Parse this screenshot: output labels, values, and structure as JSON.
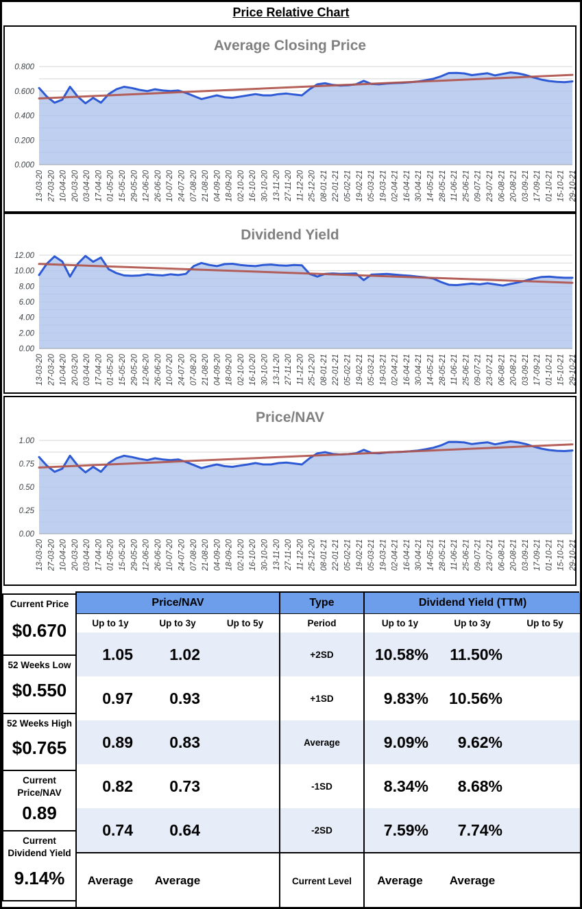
{
  "title": "Price Relative Chart",
  "colors": {
    "series_line": "#2d5ad4",
    "area_fill": "#aec3ec",
    "trend_line": "#b0544c",
    "gridline": "#d2d4d8",
    "chart_title": "#808080",
    "table_header_bg": "#6d9eeb",
    "table_stripe_bg": "#e7edf8"
  },
  "x_labels": [
    "13-03-20",
    "27-03-20",
    "10-04-20",
    "20-03-20",
    "03-04-20",
    "17-04-20",
    "01-05-20",
    "15-05-20",
    "29-05-20",
    "12-06-20",
    "26-06-20",
    "10-07-20",
    "24-07-20",
    "07-08-20",
    "21-08-20",
    "04-09-20",
    "18-09-20",
    "02-10-20",
    "16-10-20",
    "30-10-20",
    "13-11-20",
    "27-11-20",
    "11-12-20",
    "25-12-20",
    "08-01-21",
    "22-01-21",
    "05-02-21",
    "19-02-21",
    "05-03-21",
    "19-03-21",
    "02-04-21",
    "16-04-21",
    "30-04-21",
    "14-05-21",
    "28-05-21",
    "11-06-21",
    "25-06-21",
    "09-07-21",
    "23-07-21",
    "06-08-21",
    "20-08-21",
    "03-09-21",
    "17-09-21",
    "01-10-21",
    "15-10-21",
    "29-10-21"
  ],
  "chart_data": [
    {
      "type": "area",
      "title": "Average Closing Price",
      "ylim": [
        0,
        0.8
      ],
      "tick_step": 0.2,
      "grid_step": 0.1,
      "tick_decimals": 3,
      "grid": true,
      "legend_position": "none",
      "trend": {
        "start": 0.54,
        "end": 0.732
      },
      "values": [
        0.625,
        0.555,
        0.505,
        0.53,
        0.635,
        0.555,
        0.5,
        0.545,
        0.505,
        0.575,
        0.615,
        0.635,
        0.625,
        0.61,
        0.6,
        0.615,
        0.605,
        0.6,
        0.605,
        0.585,
        0.56,
        0.535,
        0.55,
        0.565,
        0.55,
        0.545,
        0.555,
        0.565,
        0.575,
        0.565,
        0.565,
        0.575,
        0.58,
        0.572,
        0.565,
        0.615,
        0.655,
        0.664,
        0.65,
        0.645,
        0.648,
        0.655,
        0.683,
        0.658,
        0.655,
        0.662,
        0.665,
        0.667,
        0.672,
        0.678,
        0.688,
        0.7,
        0.72,
        0.747,
        0.748,
        0.744,
        0.73,
        0.738,
        0.745,
        0.728,
        0.74,
        0.752,
        0.744,
        0.73,
        0.71,
        0.693,
        0.682,
        0.676,
        0.673,
        0.679
      ]
    },
    {
      "type": "area",
      "title": "Dividend Yield",
      "ylim": [
        0,
        12
      ],
      "tick_step": 2,
      "grid_step": 1,
      "tick_decimals": 2,
      "grid": true,
      "legend_position": "none",
      "trend": {
        "start": 10.87,
        "end": 8.45
      },
      "values": [
        9.45,
        10.9,
        11.85,
        11.2,
        9.25,
        10.9,
        11.9,
        11.15,
        11.7,
        10.2,
        9.7,
        9.4,
        9.35,
        9.4,
        9.55,
        9.45,
        9.4,
        9.55,
        9.45,
        9.6,
        10.6,
        11.0,
        10.75,
        10.6,
        10.85,
        10.9,
        10.75,
        10.65,
        10.6,
        10.75,
        10.8,
        10.7,
        10.65,
        10.75,
        10.7,
        9.6,
        9.25,
        9.6,
        9.65,
        9.6,
        9.62,
        9.65,
        8.8,
        9.5,
        9.55,
        9.6,
        9.5,
        9.42,
        9.35,
        9.25,
        9.15,
        9.0,
        8.55,
        8.2,
        8.15,
        8.25,
        8.35,
        8.25,
        8.4,
        8.25,
        8.1,
        8.3,
        8.5,
        8.75,
        9.0,
        9.2,
        9.25,
        9.15,
        9.1,
        9.1
      ]
    },
    {
      "type": "area",
      "title": "Price/NAV",
      "ylim": [
        0,
        1.0
      ],
      "tick_step": 0.25,
      "grid_step": 0.125,
      "tick_decimals": 2,
      "grid": true,
      "legend_position": "none",
      "trend": {
        "start": 0.71,
        "end": 0.958
      },
      "values": [
        0.822,
        0.73,
        0.664,
        0.697,
        0.836,
        0.73,
        0.658,
        0.717,
        0.664,
        0.757,
        0.809,
        0.836,
        0.822,
        0.803,
        0.789,
        0.809,
        0.796,
        0.789,
        0.796,
        0.77,
        0.737,
        0.704,
        0.724,
        0.743,
        0.724,
        0.717,
        0.73,
        0.743,
        0.757,
        0.743,
        0.743,
        0.757,
        0.763,
        0.753,
        0.743,
        0.809,
        0.862,
        0.874,
        0.855,
        0.849,
        0.853,
        0.862,
        0.899,
        0.866,
        0.862,
        0.871,
        0.875,
        0.878,
        0.884,
        0.892,
        0.905,
        0.921,
        0.947,
        0.983,
        0.984,
        0.979,
        0.961,
        0.971,
        0.98,
        0.958,
        0.974,
        0.989,
        0.979,
        0.961,
        0.934,
        0.912,
        0.897,
        0.889,
        0.886,
        0.893
      ]
    }
  ],
  "summary_boxes": [
    {
      "label": "Current Price",
      "value": "$0.670"
    },
    {
      "label": "52 Weeks Low",
      "value": "$0.550"
    },
    {
      "label": "52 Weeks High",
      "value": "$0.765"
    },
    {
      "label": "Current Price/NAV",
      "value": "0.89"
    },
    {
      "label": "Current Dividend Yield",
      "value": "9.14%"
    }
  ],
  "table": {
    "sections": {
      "pnav": "Price/NAV",
      "type": "Type",
      "dy": "Dividend Yield (TTM)"
    },
    "col_headers": [
      "Up to 1y",
      "Up to 3y",
      "Up to 5y"
    ],
    "type_subheader": "Period",
    "rows": [
      {
        "period": "+2SD",
        "pnav": [
          "1.05",
          "1.02",
          ""
        ],
        "dy": [
          "10.58%",
          "11.50%",
          ""
        ]
      },
      {
        "period": "+1SD",
        "pnav": [
          "0.97",
          "0.93",
          ""
        ],
        "dy": [
          "9.83%",
          "10.56%",
          ""
        ]
      },
      {
        "period": "Average",
        "pnav": [
          "0.89",
          "0.83",
          ""
        ],
        "dy": [
          "9.09%",
          "9.62%",
          ""
        ]
      },
      {
        "period": "-1SD",
        "pnav": [
          "0.82",
          "0.73",
          ""
        ],
        "dy": [
          "8.34%",
          "8.68%",
          ""
        ]
      },
      {
        "period": "-2SD",
        "pnav": [
          "0.74",
          "0.64",
          ""
        ],
        "dy": [
          "7.59%",
          "7.74%",
          ""
        ]
      }
    ],
    "bottom_row": {
      "period": "Current Level",
      "pnav": [
        "Average",
        "Average",
        ""
      ],
      "dy": [
        "Average",
        "Average",
        ""
      ]
    }
  }
}
